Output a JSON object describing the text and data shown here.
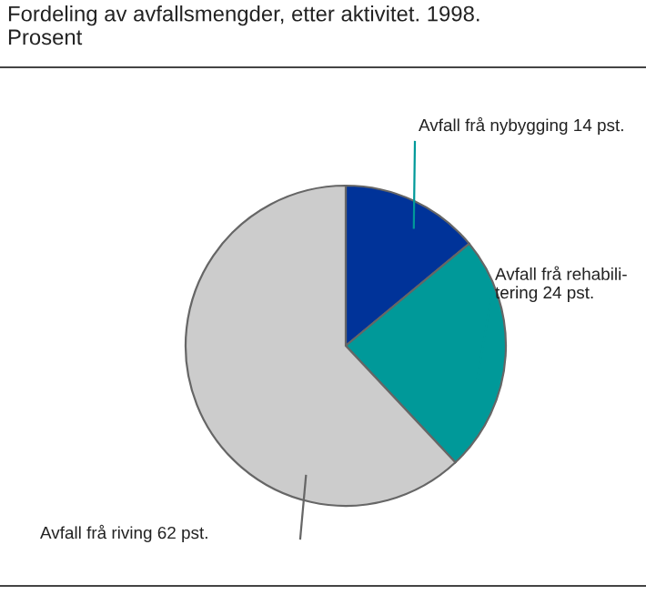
{
  "chart_data": {
    "type": "pie",
    "title": "Fordeling av avfallsmengder, etter aktivitet. 1998.\nProsent",
    "categories": [
      "Avfall frå nybygging",
      "Avfall frå rehabili-\ntering",
      "Avfall frå riving"
    ],
    "values": [
      14,
      24,
      62
    ],
    "value_labels": [
      "14 pst.",
      "24 pst.",
      "62 pst."
    ],
    "colors": [
      "#003399",
      "#009999",
      "#cccccc"
    ],
    "legend": false
  }
}
